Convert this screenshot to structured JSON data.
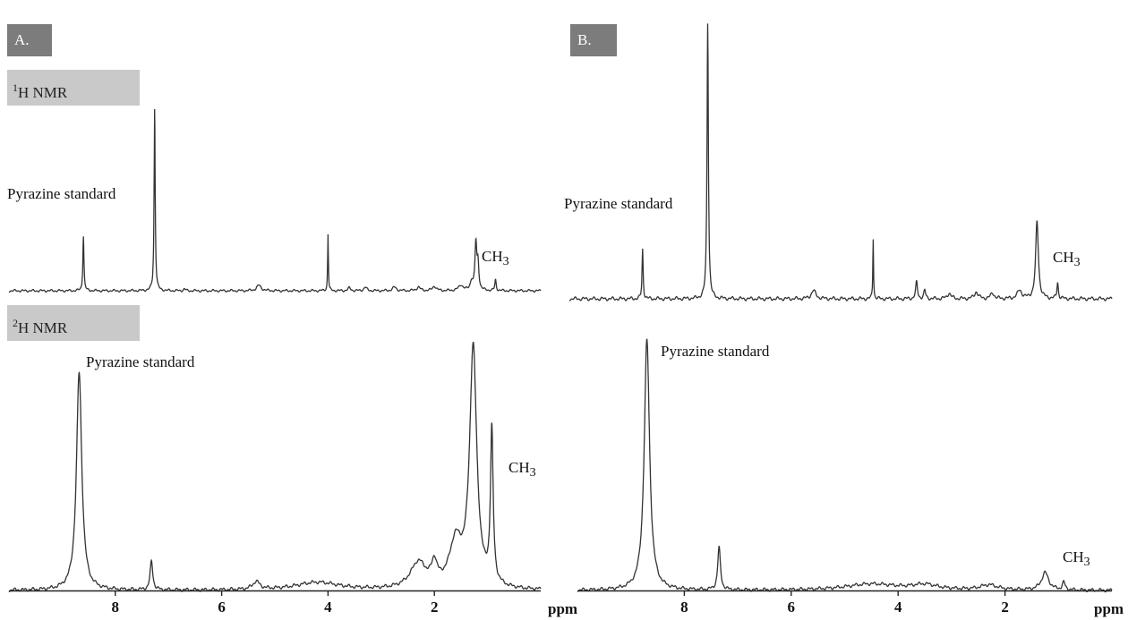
{
  "panels": [
    {
      "label": "A."
    },
    {
      "label": "B."
    }
  ],
  "nmr_labels": [
    {
      "sup": "1",
      "text": "H NMR"
    },
    {
      "sup": "2",
      "text": "H NMR"
    }
  ],
  "chart_data": [
    {
      "type": "line",
      "panel": "A",
      "spectrum": "1H NMR",
      "xlabel": "ppm",
      "xlim": [
        10,
        0
      ],
      "x_reversed": true,
      "ylim": [
        -0.08,
        1.0
      ],
      "xticks": [
        8,
        6,
        4,
        2
      ],
      "xtick_labels": [],
      "peaks": [
        {
          "x": 8.6,
          "y": 0.3,
          "w": 0.012
        },
        {
          "x": 7.26,
          "y": 1.0,
          "w": 0.012
        },
        {
          "x": 6.7,
          "y": 0.01,
          "w": 0.02
        },
        {
          "x": 5.3,
          "y": 0.03,
          "w": 0.05
        },
        {
          "x": 4.0,
          "y": 0.38,
          "w": 0.008
        },
        {
          "x": 4.0,
          "y": -0.07,
          "w": 0.008
        },
        {
          "x": 3.6,
          "y": 0.015,
          "w": 0.03
        },
        {
          "x": 3.3,
          "y": 0.02,
          "w": 0.03
        },
        {
          "x": 2.75,
          "y": 0.02,
          "w": 0.04
        },
        {
          "x": 2.3,
          "y": 0.02,
          "w": 0.04
        },
        {
          "x": 2.0,
          "y": 0.025,
          "w": 0.04
        },
        {
          "x": 1.5,
          "y": 0.03,
          "w": 0.05
        },
        {
          "x": 1.3,
          "y": 0.05,
          "w": 0.03
        },
        {
          "x": 1.22,
          "y": 0.25,
          "w": 0.02
        },
        {
          "x": 1.18,
          "y": 0.14,
          "w": 0.02
        },
        {
          "x": 0.85,
          "y": 0.06,
          "w": 0.015
        }
      ],
      "annotations": [
        {
          "text": "Pyrazine standard",
          "x": 8.6
        },
        {
          "text": "CH3",
          "x": 0.85
        }
      ]
    },
    {
      "type": "line",
      "panel": "A",
      "spectrum": "2H NMR",
      "xlabel": "ppm",
      "xlim": [
        10,
        0
      ],
      "x_reversed": true,
      "ylim": [
        0,
        1.0
      ],
      "xticks": [
        8,
        6,
        4,
        2
      ],
      "xtick_labels": [
        "8",
        "6",
        "4",
        "2"
      ],
      "peaks": [
        {
          "x": 8.68,
          "y": 0.84,
          "w": 0.06
        },
        {
          "x": 7.32,
          "y": 0.11,
          "w": 0.03
        },
        {
          "x": 5.35,
          "y": 0.03,
          "w": 0.08
        },
        {
          "x": 4.2,
          "y": 0.03,
          "w": 0.5
        },
        {
          "x": 2.3,
          "y": 0.1,
          "w": 0.18
        },
        {
          "x": 2.0,
          "y": 0.08,
          "w": 0.06
        },
        {
          "x": 1.6,
          "y": 0.17,
          "w": 0.14
        },
        {
          "x": 1.27,
          "y": 0.92,
          "w": 0.08
        },
        {
          "x": 0.92,
          "y": 0.59,
          "w": 0.03
        }
      ],
      "annotations": [
        {
          "text": "Pyrazine standard",
          "x": 8.68
        },
        {
          "text": "CH3",
          "x": 0.92
        }
      ]
    },
    {
      "type": "line",
      "panel": "B",
      "spectrum": "1H NMR",
      "xlabel": "ppm",
      "xlim": [
        10,
        0
      ],
      "x_reversed": true,
      "ylim": [
        -0.12,
        1.0
      ],
      "xticks": [
        8,
        6,
        4,
        2
      ],
      "xtick_labels": [],
      "peaks": [
        {
          "x": 8.65,
          "y": 0.18,
          "w": 0.012
        },
        {
          "x": 7.45,
          "y": 1.0,
          "w": 0.015
        },
        {
          "x": 5.5,
          "y": 0.03,
          "w": 0.05
        },
        {
          "x": 4.4,
          "y": 0.33,
          "w": 0.008
        },
        {
          "x": 4.4,
          "y": -0.11,
          "w": 0.008
        },
        {
          "x": 3.6,
          "y": 0.06,
          "w": 0.02
        },
        {
          "x": 3.45,
          "y": 0.03,
          "w": 0.02
        },
        {
          "x": 3.0,
          "y": 0.02,
          "w": 0.04
        },
        {
          "x": 2.5,
          "y": 0.025,
          "w": 0.04
        },
        {
          "x": 2.2,
          "y": 0.02,
          "w": 0.04
        },
        {
          "x": 1.7,
          "y": 0.03,
          "w": 0.05
        },
        {
          "x": 1.38,
          "y": 0.28,
          "w": 0.03
        },
        {
          "x": 1.0,
          "y": 0.06,
          "w": 0.015
        }
      ],
      "annotations": [
        {
          "text": "Pyrazine standard",
          "x": 8.65
        },
        {
          "text": "CH3",
          "x": 1.0
        }
      ]
    },
    {
      "type": "line",
      "panel": "B",
      "spectrum": "2H NMR",
      "xlabel": "ppm",
      "xlim": [
        10,
        0
      ],
      "x_reversed": true,
      "ylim": [
        0,
        1.0
      ],
      "xticks": [
        8,
        6,
        4,
        2
      ],
      "xtick_labels": [
        "8",
        "6",
        "4",
        "2"
      ],
      "peaks": [
        {
          "x": 8.7,
          "y": 1.0,
          "w": 0.06
        },
        {
          "x": 7.35,
          "y": 0.17,
          "w": 0.03
        },
        {
          "x": 4.5,
          "y": 0.025,
          "w": 0.6
        },
        {
          "x": 3.5,
          "y": 0.02,
          "w": 0.3
        },
        {
          "x": 2.3,
          "y": 0.02,
          "w": 0.2
        },
        {
          "x": 1.25,
          "y": 0.07,
          "w": 0.08
        },
        {
          "x": 0.9,
          "y": 0.03,
          "w": 0.03
        }
      ],
      "annotations": [
        {
          "text": "Pyrazine standard",
          "x": 8.7
        },
        {
          "text": "CH3",
          "x": 0.9
        }
      ]
    }
  ]
}
